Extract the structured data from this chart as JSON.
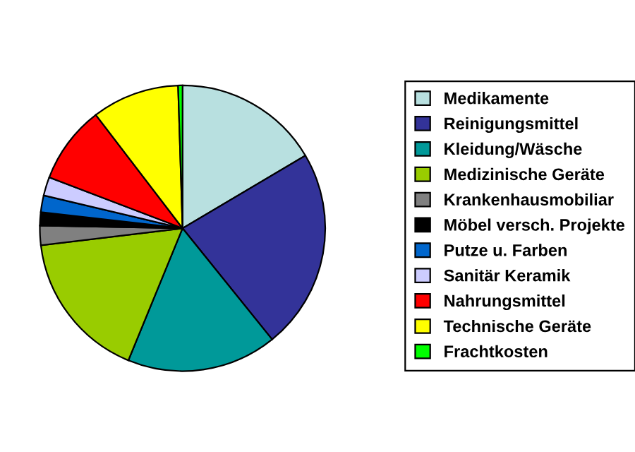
{
  "chart_data": {
    "type": "pie",
    "categories": [
      "Medikamente",
      "Reinigungsmittel",
      "Kleidung/Wäsche",
      "Medizinische Geräte",
      "Krankenhausmobiliar",
      "Möbel versch. Projekte",
      "Putze u. Farben",
      "Sanitär Keramik",
      "Nahrungsmittel",
      "Technische Geräte",
      "Frachtkosten"
    ],
    "values": [
      16.5,
      22.7,
      17,
      16.9,
      2.2,
      1.5,
      1.9,
      2.1,
      8.8,
      9.9,
      0.5
    ],
    "colors": [
      "#b8e0e0",
      "#333399",
      "#009999",
      "#99cc00",
      "#808080",
      "#000000",
      "#0066cc",
      "#ccccff",
      "#ff0000",
      "#ffff00",
      "#00ff00"
    ],
    "legend": "right"
  }
}
